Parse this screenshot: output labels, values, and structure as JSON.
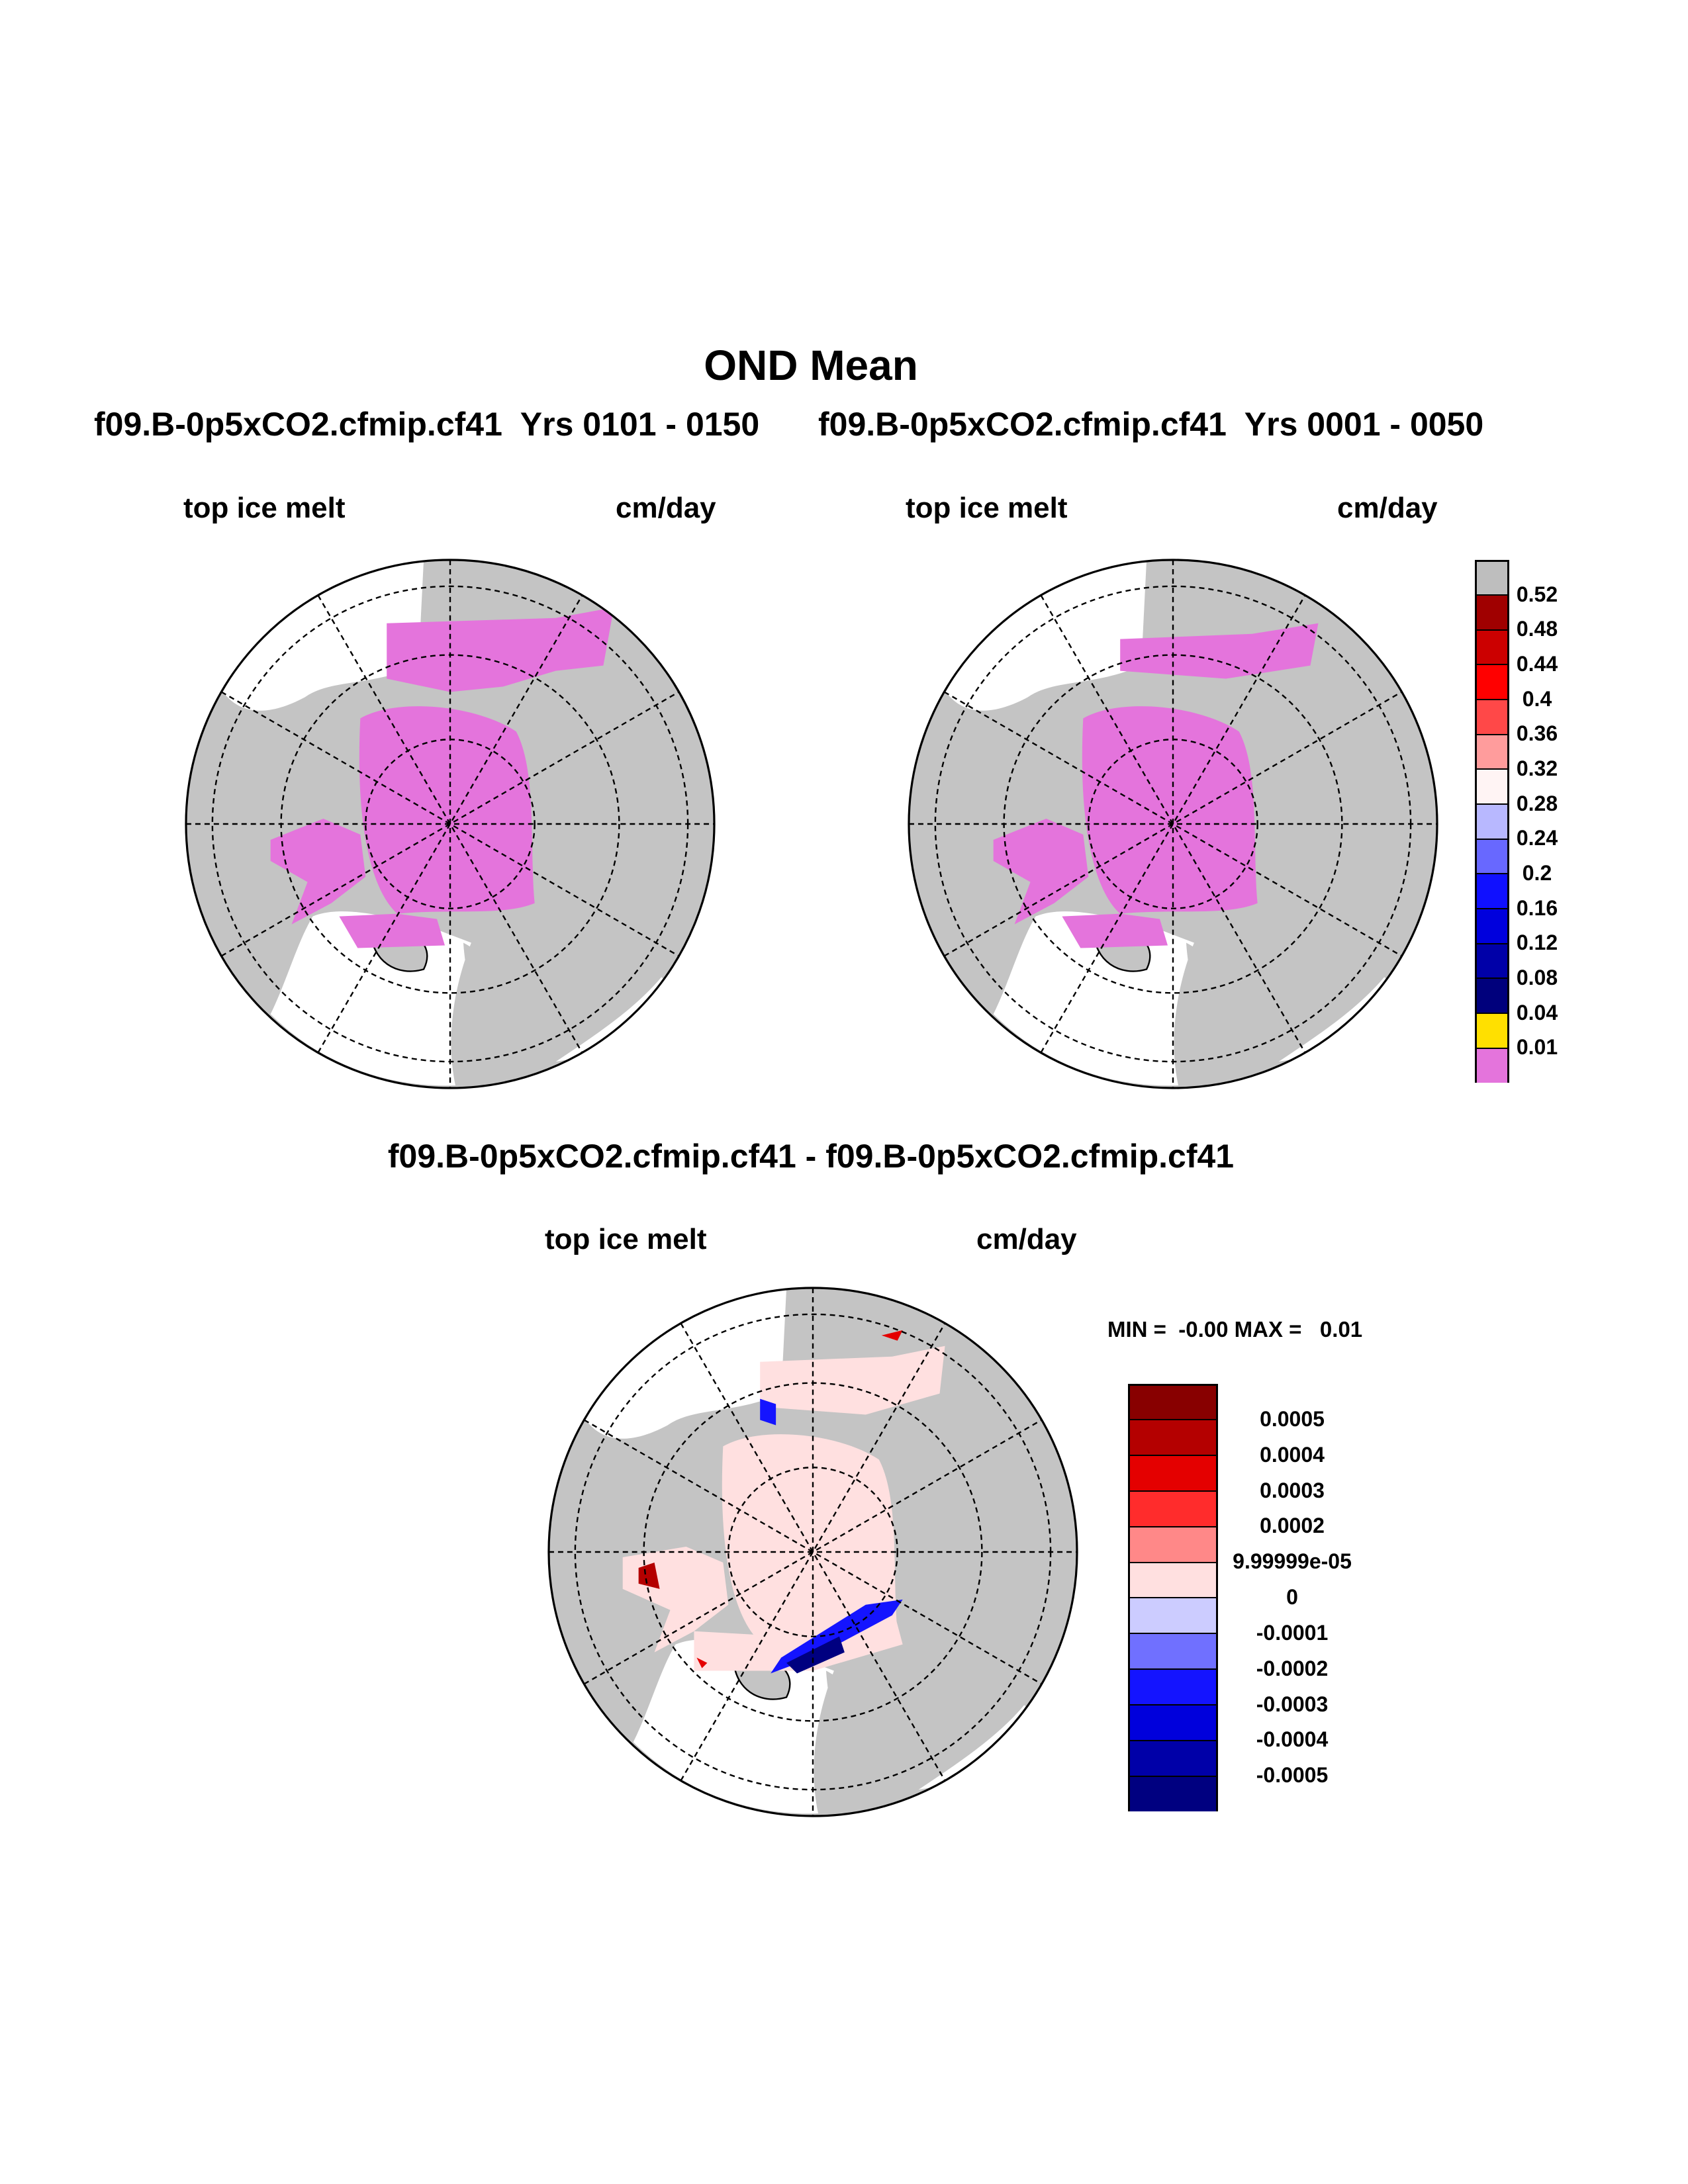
{
  "title": "OND Mean",
  "panels": {
    "left": {
      "case_label": "f09.B-0p5xCO2.cfmip.cf41  Yrs 0101 - 0150",
      "variable": "top ice melt",
      "units": "cm/day"
    },
    "right": {
      "case_label": "f09.B-0p5xCO2.cfmip.cf41  Yrs 0001 - 0050",
      "variable": "top ice melt",
      "units": "cm/day"
    },
    "diff": {
      "case_label": "f09.B-0p5xCO2.cfmip.cf41 - f09.B-0p5xCO2.cfmip.cf41",
      "variable": "top ice melt",
      "units": "cm/day",
      "minmax": "MIN =  -0.00 MAX =   0.01"
    }
  },
  "colorbar_top": {
    "labels": [
      "0.52",
      "0.48",
      "0.44",
      "0.4",
      "0.36",
      "0.32",
      "0.28",
      "0.24",
      "0.2",
      "0.16",
      "0.12",
      "0.08",
      "0.04",
      "0.01"
    ],
    "colors": [
      "#bebebe",
      "#a00000",
      "#cc0000",
      "#ff0000",
      "#ff4848",
      "#ff9c9c",
      "#fff4f4",
      "#b8b8ff",
      "#6868ff",
      "#1010ff",
      "#0000dd",
      "#0000a8",
      "#00007c",
      "#ffe000",
      "#e474dc"
    ]
  },
  "colorbar_diff": {
    "labels": [
      "0.0005",
      "0.0004",
      "0.0003",
      "0.0002",
      "9.99999e-05",
      "0",
      "-0.0001",
      "-0.0002",
      "-0.0003",
      "-0.0004",
      "-0.0005"
    ],
    "colors": [
      "#880000",
      "#b40000",
      "#e40000",
      "#ff2c2c",
      "#ff8888",
      "#ffe0e0",
      "#ccccff",
      "#7070ff",
      "#1414ff",
      "#0000dc",
      "#0000a8",
      "#000080"
    ]
  },
  "colors": {
    "land": "#c4c4c4",
    "ice_melt": "#e474dc"
  }
}
